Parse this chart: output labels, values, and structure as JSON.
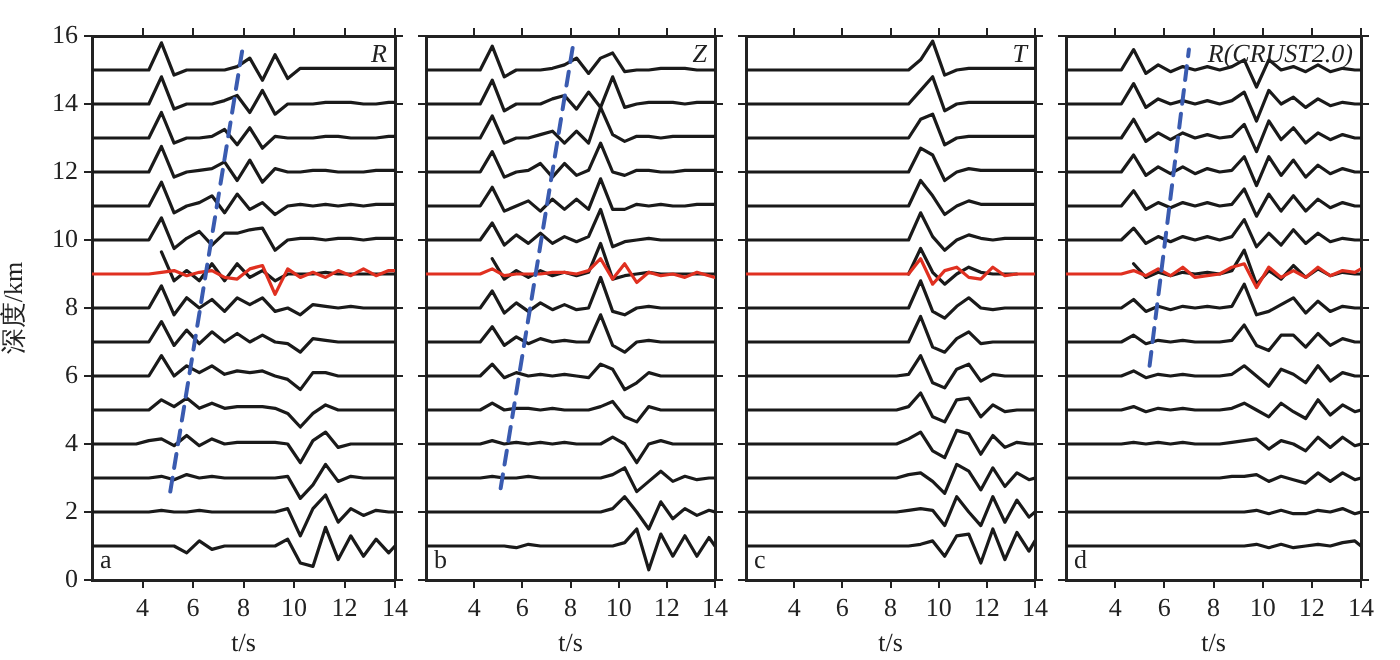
{
  "chart_data": [
    {
      "type": "line",
      "ylabel": "深度/km",
      "xlabel": "t/s",
      "annotations": [
        "R",
        "a"
      ],
      "xlim": [
        2,
        14
      ],
      "xticks": [
        4,
        6,
        8,
        10,
        12,
        14
      ],
      "ylim": [
        0,
        16
      ],
      "yticks": [
        0,
        2,
        4,
        6,
        8,
        10,
        12,
        14,
        16
      ],
      "grid": false,
      "legend": false,
      "marker": "none",
      "x": [
        2,
        3.75,
        4.25,
        4.75,
        5.25,
        5.75,
        6.25,
        6.75,
        7.25,
        7.75,
        8.25,
        8.75,
        9.25,
        9.75,
        10.25,
        10.75,
        11.25,
        11.75,
        12.25,
        12.75,
        13.25,
        13.75,
        14
      ],
      "series": [
        {
          "color": "#1a1a1a",
          "values": [
            15,
            15,
            15,
            15.8,
            14.85,
            15,
            15,
            15,
            15,
            15.1,
            15.35,
            14.7,
            15.45,
            14.75,
            15.05,
            15.05,
            15.05,
            15.05,
            15.05,
            15.05,
            15.05,
            15.05,
            15.05
          ]
        },
        {
          "color": "#1a1a1a",
          "values": [
            14,
            14,
            14,
            14.8,
            13.85,
            14,
            14,
            14,
            14.1,
            14.25,
            13.75,
            14.4,
            13.7,
            14,
            14,
            14,
            14.05,
            14.05,
            14.05,
            14,
            14,
            14.05,
            14.05
          ]
        },
        {
          "color": "#1a1a1a",
          "values": [
            13,
            13,
            13,
            13.75,
            12.85,
            13,
            13,
            13.05,
            13.25,
            12.8,
            13.3,
            12.7,
            13.05,
            13,
            13,
            13,
            13.05,
            13.05,
            13,
            13,
            13,
            13.05,
            13.05
          ]
        },
        {
          "color": "#1a1a1a",
          "values": [
            12,
            12,
            12,
            12.75,
            11.85,
            12,
            12.05,
            12.1,
            12.3,
            11.75,
            12.35,
            11.7,
            12.1,
            12,
            12,
            12.05,
            12.05,
            12,
            12,
            12,
            12.05,
            12.05,
            12.05
          ]
        },
        {
          "color": "#1a1a1a",
          "values": [
            11,
            11,
            11,
            11.7,
            10.8,
            11,
            11.1,
            11.3,
            10.8,
            11.35,
            10.9,
            11.1,
            10.75,
            11,
            11.05,
            11,
            11.05,
            11,
            11.05,
            11,
            11.05,
            11.05,
            11.05
          ]
        },
        {
          "color": "#1a1a1a",
          "values": [
            10,
            10,
            10,
            10.65,
            9.75,
            10.05,
            10.25,
            9.85,
            10.2,
            10.2,
            10.3,
            10.35,
            9.7,
            10,
            10.05,
            10.05,
            10,
            10.05,
            10.05,
            10,
            10.05,
            10.05,
            10.05
          ]
        },
        {
          "color": "#1a1a1a",
          "values": [
            null,
            null,
            null,
            9.65,
            8.8,
            9.1,
            8.8,
            9.3,
            8.8,
            9.3,
            8.9,
            9.1,
            8.8,
            9,
            9,
            9,
            9.05,
            9,
            9,
            9,
            9,
            9,
            9
          ]
        },
        {
          "color": "#1a1a1a",
          "values": [
            8,
            8,
            8,
            8.65,
            7.8,
            8.3,
            8,
            8.25,
            7.9,
            8.3,
            8.1,
            8.3,
            7.9,
            8,
            7.8,
            8.1,
            8.05,
            8,
            8.05,
            8,
            8,
            8,
            8
          ]
        },
        {
          "color": "#1a1a1a",
          "values": [
            7,
            7,
            7,
            7.6,
            6.9,
            7.35,
            6.95,
            7.3,
            7,
            7.25,
            7,
            7.2,
            7,
            6.95,
            6.7,
            7.1,
            7.05,
            7,
            7,
            7,
            7,
            7,
            7
          ]
        },
        {
          "color": "#1a1a1a",
          "values": [
            6,
            6,
            6,
            6.6,
            6,
            6.3,
            6.1,
            6.3,
            6.05,
            6.15,
            6.1,
            6.15,
            6,
            5.9,
            5.6,
            6.1,
            6.1,
            6,
            6,
            6,
            6,
            6,
            6
          ]
        },
        {
          "color": "#1a1a1a",
          "values": [
            5,
            5,
            5,
            5.3,
            5.1,
            5.35,
            5.05,
            5.2,
            5.05,
            5.1,
            5.1,
            5.1,
            5.05,
            4.9,
            4.5,
            4.9,
            5.15,
            5,
            5,
            5,
            5,
            5,
            5
          ]
        },
        {
          "color": "#1a1a1a",
          "values": [
            4,
            4,
            4.1,
            4.15,
            3.95,
            4.25,
            3.95,
            4.15,
            4,
            4.05,
            4.05,
            4.05,
            4.05,
            4,
            3.45,
            4.1,
            4.35,
            3.9,
            4,
            4,
            4,
            4,
            4
          ]
        },
        {
          "color": "#1a1a1a",
          "values": [
            3,
            3,
            3,
            3.05,
            2.95,
            3.1,
            3,
            3.05,
            3,
            3,
            3,
            3,
            3,
            3.05,
            2.4,
            2.8,
            3.4,
            2.9,
            3.05,
            3,
            3,
            3,
            3
          ]
        },
        {
          "color": "#1a1a1a",
          "values": [
            2,
            2,
            2,
            2.05,
            2,
            2,
            2.05,
            2,
            2,
            2,
            2,
            2,
            2,
            2.1,
            1.3,
            2.1,
            2.5,
            1.7,
            2.1,
            1.9,
            2.05,
            2,
            2
          ]
        },
        {
          "color": "#1a1a1a",
          "values": [
            1,
            1,
            1,
            1,
            1,
            0.8,
            1.15,
            0.9,
            1,
            1,
            1,
            1,
            1,
            1.2,
            0.5,
            0.4,
            1.55,
            0.6,
            1.3,
            0.7,
            1.2,
            0.8,
            1
          ]
        },
        {
          "color": "#e03020",
          "values": [
            9,
            9,
            9,
            9.05,
            9.1,
            8.95,
            9.05,
            9.1,
            8.9,
            8.85,
            9.15,
            9.25,
            8.4,
            9.15,
            8.9,
            9.05,
            8.9,
            9.1,
            8.95,
            9.15,
            8.95,
            9.1,
            9.1
          ]
        },
        {
          "color": "#3a5bb0",
          "line_style": "dashed",
          "x": [
            5.1,
            8
          ],
          "values": [
            2.6,
            15.8
          ]
        }
      ]
    },
    {
      "type": "line",
      "xlabel": "t/s",
      "annotations": [
        "Z",
        "b"
      ],
      "xlim": [
        2,
        14
      ],
      "xticks": [
        4,
        6,
        8,
        10,
        12,
        14
      ],
      "ylim": [
        0,
        16
      ],
      "yticks": [
        0,
        2,
        4,
        6,
        8,
        10,
        12,
        14,
        16
      ],
      "tick_labels": "x",
      "grid": false,
      "legend": false,
      "marker": "none",
      "x": [
        2,
        3.75,
        4.25,
        4.75,
        5.25,
        5.75,
        6.25,
        6.75,
        7.25,
        7.75,
        8.25,
        8.75,
        9.25,
        9.75,
        10.25,
        10.75,
        11.25,
        11.75,
        12.25,
        12.75,
        13.25,
        13.75,
        14
      ],
      "series": [
        {
          "color": "#1a1a1a",
          "values": [
            15,
            15,
            15,
            15.7,
            14.8,
            15,
            15,
            15,
            15.05,
            15.15,
            15.35,
            14.9,
            15.35,
            15.5,
            14.95,
            15,
            15,
            15.05,
            15.05,
            15.05,
            15,
            15,
            15
          ]
        },
        {
          "color": "#1a1a1a",
          "values": [
            14,
            14,
            14,
            14.7,
            13.8,
            14,
            14,
            14,
            14.15,
            14.25,
            13.85,
            14.35,
            13.9,
            14.8,
            13.9,
            14,
            14.05,
            14.05,
            14.05,
            14,
            14.05,
            14.05,
            14.05
          ]
        },
        {
          "color": "#1a1a1a",
          "values": [
            13,
            13,
            13,
            13.65,
            12.85,
            13,
            13,
            13.1,
            13.2,
            12.85,
            13.2,
            12.85,
            13.9,
            13.1,
            12.9,
            13.05,
            13.05,
            13,
            13.05,
            13.05,
            13.05,
            13.05,
            13.05
          ]
        },
        {
          "color": "#1a1a1a",
          "values": [
            12,
            12,
            12,
            12.6,
            11.85,
            12,
            12.05,
            12.25,
            11.85,
            12.25,
            11.9,
            12.05,
            12.85,
            12,
            11.9,
            12.05,
            12.05,
            12,
            12,
            12.05,
            12.05,
            12.05,
            12.05
          ]
        },
        {
          "color": "#1a1a1a",
          "values": [
            11,
            11,
            11,
            11.55,
            10.85,
            11,
            11.15,
            10.85,
            11.2,
            10.9,
            11.2,
            10.9,
            11.8,
            10.9,
            10.9,
            11.05,
            11,
            11.05,
            11,
            11,
            11.05,
            11.05,
            11.05
          ]
        },
        {
          "color": "#1a1a1a",
          "values": [
            10,
            10,
            10,
            10.5,
            9.85,
            10.15,
            9.9,
            10.2,
            9.9,
            10.1,
            9.95,
            10.1,
            10.9,
            9.8,
            9.95,
            10,
            10.05,
            10,
            10,
            10,
            10,
            10,
            10
          ]
        },
        {
          "color": "#1a1a1a",
          "values": [
            null,
            null,
            null,
            9.45,
            8.85,
            9.1,
            8.9,
            9.1,
            8.95,
            9.05,
            8.95,
            9.05,
            9.9,
            8.85,
            8.95,
            9,
            9.05,
            9,
            9,
            9,
            9,
            9,
            9
          ]
        },
        {
          "color": "#1a1a1a",
          "values": [
            8,
            8,
            8,
            8.5,
            7.85,
            8.15,
            7.9,
            8.15,
            7.95,
            8.1,
            7.95,
            8,
            8.9,
            7.9,
            7.8,
            8,
            8.05,
            8,
            8,
            8,
            8,
            8,
            8
          ]
        },
        {
          "color": "#1a1a1a",
          "values": [
            7,
            7,
            7,
            7.45,
            6.9,
            7.15,
            6.95,
            7.1,
            7,
            7.05,
            7,
            7,
            7.8,
            6.9,
            6.7,
            7,
            7.05,
            7,
            7,
            7,
            7,
            7,
            7
          ]
        },
        {
          "color": "#1a1a1a",
          "values": [
            6,
            6,
            6,
            6.35,
            5.95,
            6.1,
            6,
            6.05,
            6,
            6.05,
            6,
            5.95,
            6.35,
            6.2,
            5.6,
            5.8,
            6.1,
            6,
            6,
            6,
            6,
            6,
            6
          ]
        },
        {
          "color": "#1a1a1a",
          "values": [
            5,
            5,
            5,
            5.2,
            5,
            5.05,
            5.05,
            5,
            5.05,
            5,
            5,
            5,
            5.1,
            5.25,
            4.8,
            4.65,
            5.1,
            5,
            5,
            5,
            5,
            5,
            5
          ]
        },
        {
          "color": "#1a1a1a",
          "values": [
            4,
            4,
            4,
            4.1,
            4,
            4.05,
            4,
            4.05,
            4,
            4.05,
            4,
            4,
            4,
            4.2,
            4,
            3.45,
            4,
            4.1,
            4,
            4,
            4,
            4,
            4
          ]
        },
        {
          "color": "#1a1a1a",
          "values": [
            3,
            3,
            3,
            3.05,
            3,
            3,
            3.05,
            3,
            3,
            3,
            3,
            3,
            3,
            3.1,
            3.3,
            2.6,
            2.9,
            3.2,
            2.9,
            3.05,
            2.95,
            3,
            3
          ]
        },
        {
          "color": "#1a1a1a",
          "values": [
            2,
            2,
            2,
            2,
            2,
            2,
            2,
            2,
            2,
            2,
            2,
            2,
            2,
            2.1,
            2.45,
            2,
            1.5,
            2.3,
            1.8,
            2.1,
            1.9,
            2.05,
            2
          ]
        },
        {
          "color": "#1a1a1a",
          "values": [
            1,
            1,
            1,
            1,
            1,
            0.95,
            1.05,
            1,
            1,
            1,
            1,
            1,
            1,
            1,
            1.1,
            1.5,
            0.3,
            1.35,
            0.7,
            1.3,
            0.7,
            1.25,
            1
          ]
        },
        {
          "color": "#e03020",
          "values": [
            9,
            9,
            9,
            9.15,
            8.95,
            9,
            9,
            9,
            9.05,
            9.05,
            9,
            9.1,
            9.45,
            8.85,
            9.3,
            8.75,
            9.05,
            8.95,
            9,
            8.9,
            9.05,
            8.95,
            8.9
          ]
        },
        {
          "color": "#3a5bb0",
          "line_style": "dashed",
          "x": [
            5.1,
            8.1
          ],
          "values": [
            2.7,
            15.7
          ]
        }
      ]
    },
    {
      "type": "line",
      "xlabel": "t/s",
      "annotations": [
        "T",
        "c"
      ],
      "xlim": [
        2,
        14
      ],
      "xticks": [
        4,
        6,
        8,
        10,
        12,
        14
      ],
      "ylim": [
        0,
        16
      ],
      "yticks": [
        0,
        2,
        4,
        6,
        8,
        10,
        12,
        14,
        16
      ],
      "tick_labels": "x",
      "grid": false,
      "legend": false,
      "marker": "none",
      "x": [
        2,
        3.75,
        4.25,
        4.75,
        5.25,
        5.75,
        6.25,
        6.75,
        7.25,
        7.75,
        8.25,
        8.75,
        9.25,
        9.75,
        10.25,
        10.75,
        11.25,
        11.75,
        12.25,
        12.75,
        13.25,
        13.75,
        14
      ],
      "series": [
        {
          "color": "#1a1a1a",
          "values": [
            15,
            15,
            15,
            15,
            15,
            15,
            15,
            15,
            15,
            15,
            15,
            15,
            15.3,
            15.85,
            14.85,
            15,
            15.05,
            15.05,
            15.05,
            15.05,
            15.05,
            15.05,
            15.05
          ]
        },
        {
          "color": "#1a1a1a",
          "values": [
            14,
            14,
            14,
            14,
            14,
            14,
            14,
            14,
            14,
            14,
            14,
            14,
            14.4,
            14.8,
            13.8,
            14,
            14.05,
            14.05,
            14.05,
            14.05,
            14.05,
            14.05,
            14.05
          ]
        },
        {
          "color": "#1a1a1a",
          "values": [
            13,
            13,
            13,
            13,
            13,
            13,
            13,
            13,
            13,
            13,
            13,
            13,
            13.55,
            13.7,
            12.8,
            13,
            13.05,
            13.05,
            13.05,
            13.05,
            13.05,
            13.05,
            13.05
          ]
        },
        {
          "color": "#1a1a1a",
          "values": [
            12,
            12,
            12,
            12,
            12,
            12,
            12,
            12,
            12,
            12,
            12,
            12,
            12.7,
            12.5,
            11.75,
            12,
            12.1,
            12.05,
            12.05,
            12.05,
            12.05,
            12.05,
            12.05
          ]
        },
        {
          "color": "#1a1a1a",
          "values": [
            11,
            11,
            11,
            11,
            11,
            11,
            11,
            11,
            11,
            11,
            11,
            11,
            11.75,
            11.3,
            10.75,
            11,
            11.15,
            11.05,
            11.05,
            11.05,
            11.05,
            11.05,
            11.05
          ]
        },
        {
          "color": "#1a1a1a",
          "values": [
            10,
            10,
            10,
            10,
            10,
            10,
            10,
            10,
            10,
            10,
            10,
            10,
            10.8,
            10.1,
            9.7,
            10,
            10.15,
            10.05,
            10,
            10.05,
            10.05,
            10.05,
            10.05
          ]
        },
        {
          "color": "#1a1a1a",
          "values": [
            null,
            null,
            null,
            null,
            null,
            null,
            null,
            null,
            null,
            null,
            null,
            9,
            9.75,
            9.05,
            8.7,
            9,
            9.2,
            9.05,
            9,
            9,
            9,
            null,
            null
          ]
        },
        {
          "color": "#1a1a1a",
          "values": [
            8,
            8,
            8,
            8,
            8,
            8,
            8,
            8,
            8,
            8,
            8,
            8,
            8.8,
            7.9,
            7.7,
            8.05,
            8.3,
            8,
            7.95,
            8,
            8,
            8,
            8
          ]
        },
        {
          "color": "#1a1a1a",
          "values": [
            7,
            7,
            7,
            7,
            7,
            7,
            7,
            7,
            7,
            7,
            7,
            7,
            7.75,
            6.85,
            6.7,
            7.1,
            7.3,
            6.95,
            7,
            7,
            7,
            7,
            7
          ]
        },
        {
          "color": "#1a1a1a",
          "values": [
            6,
            6,
            6,
            6,
            6,
            6,
            6,
            6,
            6,
            6,
            6,
            6.05,
            6.6,
            5.8,
            5.65,
            6.2,
            6.35,
            5.85,
            6.05,
            6,
            6,
            6,
            6
          ]
        },
        {
          "color": "#1a1a1a",
          "values": [
            5,
            5,
            5,
            5,
            5,
            5,
            5,
            5,
            5,
            5,
            5,
            5.1,
            5.5,
            4.8,
            4.65,
            5.3,
            5.35,
            4.8,
            5.15,
            4.95,
            5,
            5,
            5
          ]
        },
        {
          "color": "#1a1a1a",
          "values": [
            4,
            4,
            4,
            4,
            4,
            4,
            4,
            4,
            4,
            4,
            4,
            4.15,
            4.35,
            3.8,
            3.6,
            4.4,
            4.3,
            3.7,
            4.25,
            3.9,
            4.05,
            4,
            4
          ]
        },
        {
          "color": "#1a1a1a",
          "values": [
            3,
            3,
            3,
            3,
            3,
            3,
            3,
            3,
            3,
            3,
            3,
            3.1,
            3.15,
            2.9,
            2.55,
            3.4,
            3.2,
            2.65,
            3.3,
            2.75,
            3.15,
            2.95,
            3
          ]
        },
        {
          "color": "#1a1a1a",
          "values": [
            2,
            2,
            2,
            2,
            2,
            2,
            2,
            2,
            2,
            2,
            2,
            2.05,
            2.1,
            2.05,
            1.6,
            2.45,
            2,
            1.6,
            2.45,
            1.7,
            2.35,
            1.85,
            2
          ]
        },
        {
          "color": "#1a1a1a",
          "values": [
            1,
            1,
            1,
            1,
            1,
            1,
            1,
            1,
            1,
            1,
            1,
            1,
            1.05,
            1.15,
            0.7,
            1.3,
            1.35,
            0.5,
            1.5,
            0.6,
            1.4,
            0.85,
            1.15
          ]
        },
        {
          "color": "#e03020",
          "values": [
            9,
            9,
            9,
            9,
            9,
            9,
            9,
            9,
            9,
            9,
            9,
            9,
            9.45,
            8.7,
            9.1,
            9.2,
            8.9,
            8.85,
            9.2,
            8.95,
            9,
            9,
            9
          ]
        }
      ]
    },
    {
      "type": "line",
      "xlabel": "t/s",
      "annotations": [
        "R(CRUST2.0)",
        "d"
      ],
      "xlim": [
        2,
        14
      ],
      "xticks": [
        4,
        6,
        8,
        10,
        12,
        14
      ],
      "ylim": [
        0,
        16
      ],
      "yticks": [
        0,
        2,
        4,
        6,
        8,
        10,
        12,
        14,
        16
      ],
      "tick_labels": "x",
      "grid": false,
      "legend": false,
      "marker": "none",
      "x": [
        2,
        3.75,
        4.25,
        4.75,
        5.25,
        5.75,
        6.25,
        6.75,
        7.25,
        7.75,
        8.25,
        8.75,
        9.25,
        9.75,
        10.25,
        10.75,
        11.25,
        11.75,
        12.25,
        12.75,
        13.25,
        13.75,
        14
      ],
      "series": [
        {
          "color": "#1a1a1a",
          "values": [
            15,
            15,
            15,
            15.6,
            14.9,
            15.15,
            14.95,
            15.1,
            15,
            15.1,
            15,
            15.1,
            15.3,
            14.5,
            15.3,
            15,
            15.1,
            14.95,
            15.15,
            14.95,
            15.05,
            15,
            15
          ]
        },
        {
          "color": "#1a1a1a",
          "values": [
            14,
            14,
            14,
            14.6,
            13.9,
            14.15,
            14,
            14.1,
            14,
            14.1,
            14,
            14.1,
            14.35,
            13.5,
            14.4,
            14,
            14.2,
            13.9,
            14.15,
            13.95,
            14.05,
            14,
            14
          ]
        },
        {
          "color": "#1a1a1a",
          "values": [
            13,
            13,
            13,
            13.55,
            12.9,
            13.15,
            12.95,
            13.15,
            13,
            13.1,
            13,
            13.05,
            13.4,
            12.6,
            13.5,
            12.95,
            13.3,
            12.85,
            13.15,
            12.95,
            13.1,
            13,
            13
          ]
        },
        {
          "color": "#1a1a1a",
          "values": [
            12,
            12,
            12,
            12.5,
            11.9,
            12.15,
            11.95,
            12.15,
            11.95,
            12.1,
            12,
            12.05,
            12.45,
            11.6,
            12.45,
            11.9,
            12.35,
            11.85,
            12.2,
            11.95,
            12.1,
            12,
            12
          ]
        },
        {
          "color": "#1a1a1a",
          "values": [
            11,
            11,
            11,
            11.45,
            10.9,
            11.1,
            10.95,
            11.1,
            11,
            11.1,
            11,
            11.05,
            11.5,
            10.7,
            11.35,
            10.85,
            11.3,
            10.85,
            11.2,
            10.95,
            11.1,
            11,
            11
          ]
        },
        {
          "color": "#1a1a1a",
          "values": [
            10,
            10,
            10,
            10.35,
            9.9,
            10.1,
            9.95,
            10.1,
            10,
            10.1,
            10,
            10.1,
            10.6,
            9.8,
            10.2,
            9.85,
            10.3,
            9.9,
            10.2,
            9.95,
            10.05,
            10,
            10
          ]
        },
        {
          "color": "#1a1a1a",
          "values": [
            null,
            null,
            null,
            9.3,
            8.9,
            9.05,
            8.95,
            9.05,
            9,
            9.05,
            9,
            9.1,
            9.7,
            8.7,
            9.1,
            8.85,
            9.25,
            8.9,
            9.15,
            8.95,
            9.05,
            9,
            9
          ]
        },
        {
          "color": "#1a1a1a",
          "values": [
            8,
            8,
            8,
            8.25,
            7.9,
            8.05,
            7.95,
            8.05,
            8,
            8.05,
            8,
            8.05,
            8.7,
            7.8,
            7.9,
            8.1,
            8.3,
            7.85,
            8.2,
            7.9,
            8.05,
            8,
            8
          ]
        },
        {
          "color": "#1a1a1a",
          "values": [
            7,
            7,
            7,
            7.2,
            6.95,
            7.05,
            7,
            7.05,
            7,
            7,
            7,
            7.05,
            7.5,
            6.9,
            6.75,
            7.2,
            7.2,
            6.85,
            7.25,
            6.9,
            7.1,
            7,
            7
          ]
        },
        {
          "color": "#1a1a1a",
          "values": [
            6,
            6,
            6,
            6.15,
            5.95,
            6.05,
            6,
            6.05,
            6,
            6,
            6,
            6.05,
            6.3,
            6,
            5.7,
            6.2,
            6.05,
            5.8,
            6.3,
            5.85,
            6.1,
            6,
            6
          ]
        },
        {
          "color": "#1a1a1a",
          "values": [
            5,
            5,
            5,
            5.1,
            4.95,
            5.05,
            5,
            5.05,
            5,
            5,
            5,
            5.05,
            5.2,
            5,
            4.8,
            5.2,
            4.95,
            4.75,
            5.3,
            4.85,
            5.15,
            4.95,
            5
          ]
        },
        {
          "color": "#1a1a1a",
          "values": [
            4,
            4,
            4,
            4.05,
            4,
            4.05,
            4,
            4.05,
            4,
            4,
            4,
            4.05,
            4.1,
            4.15,
            3.85,
            4.1,
            4,
            3.8,
            4.2,
            3.9,
            4.2,
            3.95,
            4
          ]
        },
        {
          "color": "#1a1a1a",
          "values": [
            3,
            3,
            3,
            3,
            3,
            3,
            3,
            3,
            3,
            3,
            3,
            3.05,
            3.05,
            3.1,
            2.9,
            3.05,
            2.95,
            2.85,
            3.15,
            2.9,
            3.15,
            2.95,
            3
          ]
        },
        {
          "color": "#1a1a1a",
          "values": [
            2,
            2,
            2,
            2,
            2,
            2,
            2,
            2,
            2,
            2,
            2,
            2,
            2,
            2.05,
            1.95,
            2.05,
            1.95,
            1.95,
            2.05,
            2,
            2.1,
            1.95,
            2
          ]
        },
        {
          "color": "#1a1a1a",
          "values": [
            1,
            1,
            1,
            1,
            1,
            1,
            1,
            1,
            1,
            1,
            1,
            1,
            1,
            1.05,
            0.95,
            1.05,
            0.95,
            1,
            1.05,
            1,
            1.1,
            1.15,
            1
          ]
        },
        {
          "color": "#e03020",
          "values": [
            9,
            9,
            9,
            9.1,
            8.95,
            9.15,
            8.95,
            9.2,
            8.9,
            8.95,
            9,
            9.2,
            9.3,
            8.6,
            9.2,
            8.9,
            9.1,
            8.9,
            9.2,
            8.95,
            9.1,
            9.05,
            9.15
          ]
        },
        {
          "color": "#3a5bb0",
          "line_style": "dashed",
          "x": [
            5.4,
            7
          ],
          "values": [
            6.3,
            15.6
          ]
        }
      ]
    }
  ]
}
